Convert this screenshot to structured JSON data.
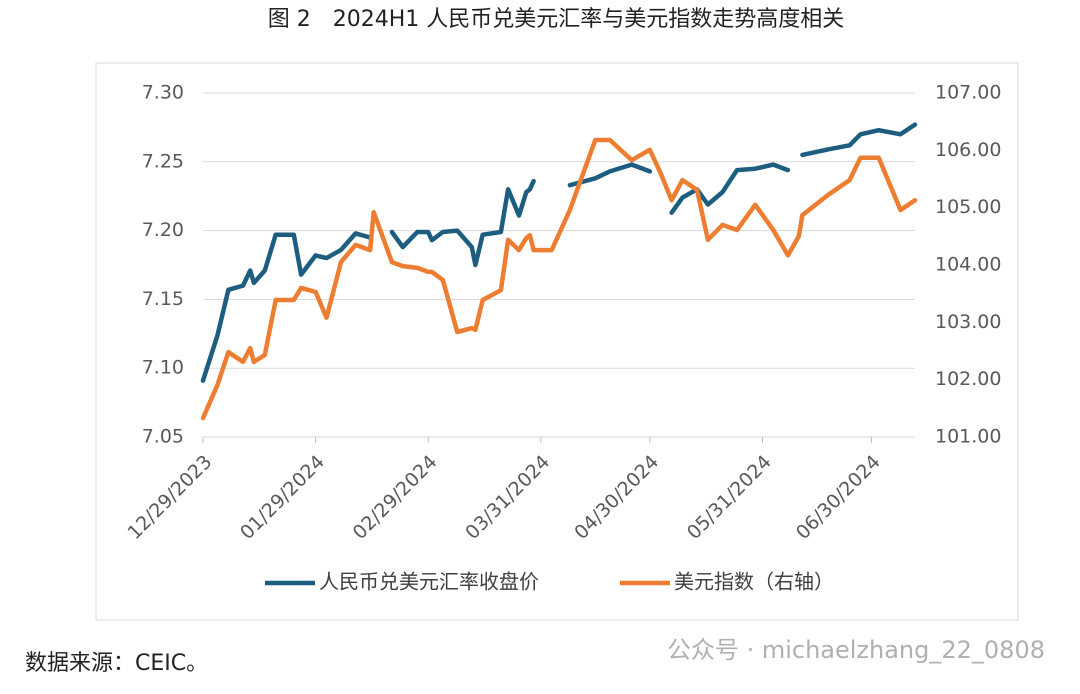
{
  "chart_data": {
    "type": "line",
    "title": "图 2　2024H1 人民币兑美元汇率与美元指数走势高度相关",
    "source": "数据来源：CEIC。",
    "watermark": "公众号 · michaelzhang_22_0808",
    "x": [
      "2023-12-29",
      "2024-01-02",
      "2024-01-05",
      "2024-01-09",
      "2024-01-11",
      "2024-01-12",
      "2024-01-15",
      "2024-01-18",
      "2024-01-23",
      "2024-01-25",
      "2024-01-29",
      "2024-02-01",
      "2024-02-05",
      "2024-02-09",
      "2024-02-13",
      "2024-02-14",
      "2024-02-19",
      "2024-02-22",
      "2024-02-26",
      "2024-02-29",
      "2024-03-01",
      "2024-03-04",
      "2024-03-08",
      "2024-03-12",
      "2024-03-13",
      "2024-03-15",
      "2024-03-20",
      "2024-03-22",
      "2024-03-25",
      "2024-03-27",
      "2024-03-28",
      "2024-03-29",
      "2024-04-03",
      "2024-04-08",
      "2024-04-15",
      "2024-04-19",
      "2024-04-25",
      "2024-04-30",
      "2024-05-03",
      "2024-05-06",
      "2024-05-09",
      "2024-05-13",
      "2024-05-16",
      "2024-05-20",
      "2024-05-24",
      "2024-05-29",
      "2024-06-03",
      "2024-06-07",
      "2024-06-10",
      "2024-06-11",
      "2024-06-18",
      "2024-06-24",
      "2024-06-27",
      "2024-07-02",
      "2024-07-08",
      "2024-07-12"
    ],
    "series": [
      {
        "name": "人民币兑美元汇率收盘价",
        "color": "#1d5e80",
        "axis": "y",
        "values": [
          7.091,
          7.124,
          7.157,
          7.16,
          7.171,
          7.162,
          7.171,
          7.197,
          7.197,
          7.168,
          7.182,
          7.18,
          7.186,
          7.198,
          7.195,
          null,
          7.199,
          7.188,
          7.199,
          7.199,
          7.193,
          7.199,
          7.2,
          7.188,
          7.175,
          7.197,
          7.199,
          7.23,
          7.211,
          7.228,
          7.23,
          7.236,
          null,
          7.233,
          7.238,
          7.243,
          7.248,
          7.243,
          null,
          7.213,
          7.224,
          7.23,
          7.219,
          7.228,
          7.244,
          7.245,
          7.248,
          7.244,
          null,
          7.255,
          7.259,
          7.262,
          7.27,
          7.273,
          7.27,
          7.277
        ]
      },
      {
        "name": "美元指数（右轴）",
        "color": "#ed7d31",
        "axis": "y2",
        "values": [
          101.33,
          101.91,
          102.48,
          102.31,
          102.55,
          102.31,
          102.43,
          103.39,
          103.39,
          103.6,
          103.53,
          103.08,
          104.05,
          104.35,
          104.26,
          104.92,
          104.05,
          103.98,
          103.95,
          103.88,
          103.88,
          103.74,
          102.83,
          102.9,
          102.87,
          103.39,
          103.56,
          104.44,
          104.26,
          104.47,
          104.52,
          104.26,
          104.26,
          104.96,
          106.18,
          106.18,
          105.83,
          106.01,
          105.6,
          105.13,
          105.48,
          105.31,
          104.44,
          104.7,
          104.61,
          105.05,
          104.61,
          104.17,
          104.5,
          104.87,
          105.22,
          105.48,
          105.87,
          105.87,
          104.96,
          105.13
        ]
      }
    ],
    "xlim": [
      "2023-12-29",
      "2024-07-12"
    ],
    "xticks": [
      {
        "value": "2023-12-29",
        "label": "12/29/2023"
      },
      {
        "value": "2024-01-29",
        "label": "01/29/2024"
      },
      {
        "value": "2024-02-29",
        "label": "02/29/2024"
      },
      {
        "value": "2024-03-31",
        "label": "03/31/2024"
      },
      {
        "value": "2024-04-30",
        "label": "04/30/2024"
      },
      {
        "value": "2024-05-31",
        "label": "05/31/2024"
      },
      {
        "value": "2024-06-30",
        "label": "06/30/2024"
      }
    ],
    "ylim": [
      7.05,
      7.3
    ],
    "yticks": [
      {
        "value": 7.05,
        "label": "7.05"
      },
      {
        "value": 7.1,
        "label": "7.10"
      },
      {
        "value": 7.15,
        "label": "7.15"
      },
      {
        "value": 7.2,
        "label": "7.20"
      },
      {
        "value": 7.25,
        "label": "7.25"
      },
      {
        "value": 7.3,
        "label": "7.30"
      }
    ],
    "y2lim": [
      101,
      107
    ],
    "y2ticks": [
      {
        "value": 101,
        "label": "101.00"
      },
      {
        "value": 102,
        "label": "102.00"
      },
      {
        "value": 103,
        "label": "103.00"
      },
      {
        "value": 104,
        "label": "104.00"
      },
      {
        "value": 105,
        "label": "105.00"
      },
      {
        "value": 106,
        "label": "106.00"
      },
      {
        "value": 107,
        "label": "107.00"
      }
    ],
    "grid": true,
    "legend": "bottom"
  }
}
